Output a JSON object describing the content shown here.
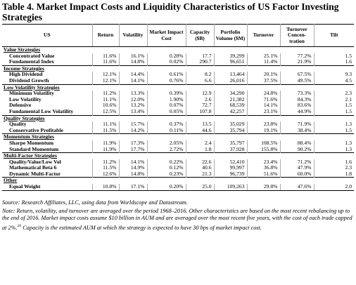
{
  "title": "Table 4. Market Impact Costs and Liquidity Characteristics of US Factor Investing Strategies",
  "table": {
    "header": [
      "US",
      "Return",
      "Volatility",
      "Market Impact Cost",
      "Capacity ($B)",
      "Portfolio Volume ($M)",
      "Turnover",
      "Turnover Concen-tration",
      "Tilt"
    ],
    "groups": [
      {
        "title": "Value Strategies",
        "rows": [
          [
            "Concentrated Value",
            "11.6%",
            "16.1%",
            "0.28%",
            "17.7",
            "39,299",
            "25.1%",
            "77.2%",
            "1.5"
          ],
          [
            "Fundamental Index",
            "11.6%",
            "14.8%",
            "0.02%",
            "290.7",
            "96,651",
            "11.4%",
            "21.9%",
            "1.6"
          ]
        ]
      },
      {
        "title": "Income Strategies",
        "rows": [
          [
            "High Dividend",
            "12.1%",
            "14.4%",
            "0.61%",
            "8.2",
            "13,464",
            "20.1%",
            "67.5%",
            "9.3"
          ],
          [
            "Dividend Growth",
            "12.1%",
            "14.1%",
            "0.76%",
            "6.6",
            "26,016",
            "37.5%",
            "49.5%",
            "4.5"
          ]
        ]
      },
      {
        "title": "Low Volatility Strategies",
        "rows": [
          [
            "Minimum Volatility",
            "11.2%",
            "13.3%",
            "0.39%",
            "12.9",
            "34,290",
            "24.8%",
            "73.3%",
            "2.3"
          ],
          [
            "Low Volatility",
            "11.1%",
            "12.0%",
            "1.90%",
            "2.6",
            "21,382",
            "71.6%",
            "84.3%",
            "2.1"
          ],
          [
            "Defensive",
            "10.6%",
            "13.2%",
            "0.07%",
            "72.7",
            "68,539",
            "14.1%",
            "83.6%",
            "1.5"
          ],
          [
            "Fundamental Low Volatility",
            "12.5%",
            "13.4%",
            "0.05%",
            "107.8",
            "42,257",
            "23.1%",
            "44.9%",
            "1.5"
          ]
        ]
      },
      {
        "title": "Quality Strategies",
        "rows": [
          [
            "Quality",
            "11.1%",
            "15.7%",
            "0.37%",
            "13.5",
            "35,029",
            "23.8%",
            "71.9%",
            "1.3"
          ],
          [
            "Conservative Profitable",
            "11.5%",
            "14.2%",
            "0.11%",
            "44.6",
            "35,794",
            "19.1%",
            "38.4%",
            "1.5"
          ]
        ]
      },
      {
        "title": "Momentum Strategies",
        "rows": [
          [
            "Sharpe Momentum",
            "11.9%",
            "17.3%",
            "2.05%",
            "2.4",
            "35,797",
            "108.5%",
            "88.4%",
            "1.3"
          ],
          [
            "Standard Momentum",
            "11.9%",
            "17.7%",
            "2.72%",
            "1.8",
            "37,928",
            "155.8%",
            "90.2%",
            "1.3"
          ]
        ]
      },
      {
        "title": "Multi-Factor Strategies",
        "rows": [
          [
            "Quality/Value/Low Vol",
            "11.2%",
            "14.1%",
            "0.22%",
            "22.6",
            "52,410",
            "23.4%",
            "71.2%",
            "1.6"
          ],
          [
            "Mathematical Beta 6",
            "11.5%",
            "14.9%",
            "0.12%",
            "40.6",
            "99,997",
            "36.8%",
            "47.9%",
            "2.3"
          ],
          [
            "Dynamic Multi-Factor",
            "12.6%",
            "14.8%",
            "0.23%",
            "21.3",
            "96,739",
            "51.6%",
            "60.0%",
            "1.8"
          ]
        ]
      },
      {
        "title": "Other",
        "rows": [
          [
            "Equal Weight",
            "10.8%",
            "17.1%",
            "0.20%",
            "25.0",
            "109,263",
            "29.8%",
            "47.6%",
            "2.0"
          ]
        ]
      }
    ]
  },
  "source": "Source: Research Affiliates, LLC, using data from Worldscope and Datastream.",
  "note": {
    "text": "Note: Return, volatility, and turnover are averaged over the period 1968–2016. Other characteristics are based on the most recent rebalancing up to the end of 2016. Market impact costs assume $10 billion in AUM and are averaged over the most recent five years, with the cost of each trade capped at 2%.",
    "footnote_ref": "26",
    "text_after": " Capacity is the estimated AUM at which the strategy is expected to have 30 bps of market impact cost."
  }
}
